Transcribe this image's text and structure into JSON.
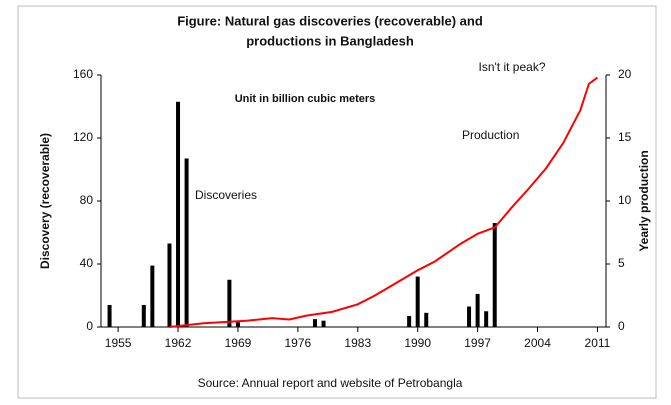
{
  "chart_data": {
    "type": "bar_line",
    "title": [
      "Figure: Natural gas discoveries (recoverable) and",
      "productions in Bangladesh"
    ],
    "subtitle": "Unit in billion cubic meters",
    "ylabel": "Discovery (recoverable)",
    "y2label": "Yearly production",
    "source": "Source: Annual report and website of Petrobangla",
    "annotation": "Isn't it peak?",
    "xlim": [
      1953,
      2012
    ],
    "xticks": [
      1955,
      1962,
      1969,
      1976,
      1983,
      1990,
      1997,
      2004,
      2011
    ],
    "ylim": [
      0,
      160
    ],
    "yticks": [
      0,
      40,
      80,
      120,
      160
    ],
    "y2lim": [
      0,
      20
    ],
    "y2ticks": [
      0,
      5,
      10,
      15,
      20
    ],
    "series": [
      {
        "name": "Discoveries",
        "kind": "bar",
        "color": "#000000",
        "x": [
          1954,
          1958,
          1959,
          1961,
          1962,
          1963,
          1968,
          1969,
          1978,
          1979,
          1989,
          1990,
          1991,
          1996,
          1997,
          1998,
          1999
        ],
        "values": [
          14,
          14,
          39,
          53,
          143,
          107,
          30,
          3,
          5,
          4,
          7,
          32,
          9,
          13,
          21,
          10,
          66
        ]
      },
      {
        "name": "Production",
        "kind": "line",
        "color": "#ff0000",
        "axis": "y2",
        "x": [
          1961,
          1965,
          1970,
          1973,
          1975,
          1977,
          1980,
          1983,
          1985,
          1988,
          1990,
          1992,
          1995,
          1997,
          1999,
          2001,
          2003,
          2005,
          2007,
          2009,
          2010,
          2011
        ],
        "values": [
          0,
          0.3,
          0.5,
          0.7,
          0.6,
          0.9,
          1.2,
          1.8,
          2.5,
          3.7,
          4.5,
          5.2,
          6.6,
          7.4,
          7.9,
          9.5,
          11,
          12.6,
          14.6,
          17.2,
          19.3,
          19.8
        ]
      }
    ]
  }
}
